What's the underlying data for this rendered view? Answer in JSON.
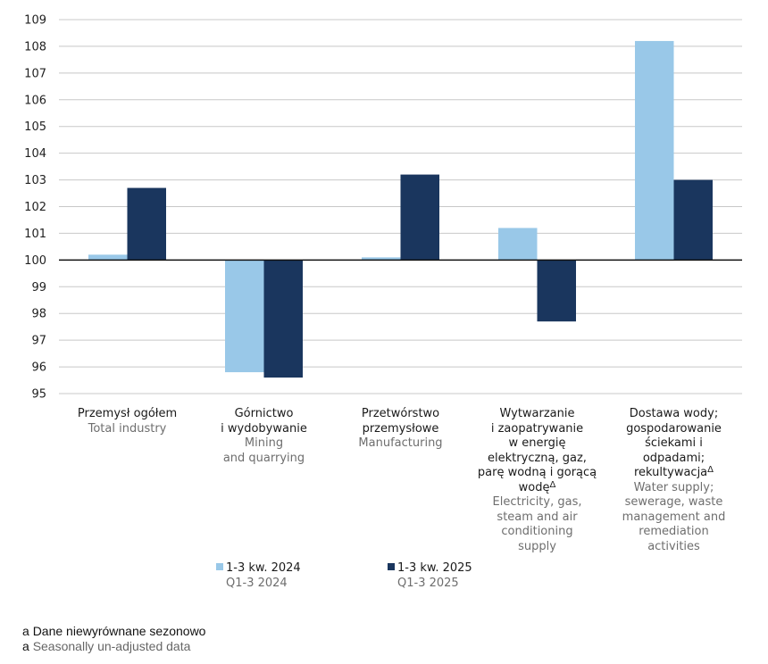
{
  "chart_data": {
    "type": "bar",
    "title": "",
    "xlabel": "",
    "ylabel": "",
    "ylim": [
      95,
      109
    ],
    "baseline": 100,
    "yticks": [
      109,
      108,
      107,
      106,
      105,
      104,
      103,
      102,
      101,
      100,
      99,
      98,
      97,
      96,
      95
    ],
    "grid": true,
    "legend_position": "bottom",
    "categories": [
      {
        "pl": "Przemysł ogółem",
        "en": "Total industry",
        "pl_lines": [
          "Przemysł ogółem"
        ],
        "en_lines": [
          "Total industry"
        ],
        "footnote_mark": ""
      },
      {
        "pl": "Górnictwo i wydobywanie",
        "en": "Mining and quarrying",
        "pl_lines": [
          "Górnictwo",
          "i wydobywanie"
        ],
        "en_lines": [
          "Mining",
          "and quarrying"
        ],
        "footnote_mark": ""
      },
      {
        "pl": "Przetwórstwo przemysłowe",
        "en": "Manufacturing",
        "pl_lines": [
          "Przetwórstwo",
          "przemysłowe"
        ],
        "en_lines": [
          "Manufacturing"
        ],
        "footnote_mark": ""
      },
      {
        "pl": "Wytwarzanie i zaopatrywanie w energię elektryczną, gaz, parę wodną i gorącą wodę",
        "en": "Electricity, gas, steam and air conditioning supply",
        "pl_lines": [
          "Wytwarzanie",
          "i zaopatrywanie",
          "w energię",
          "elektryczną, gaz,",
          "parę wodną i gorącą",
          "wodę"
        ],
        "en_lines": [
          "Electricity, gas,",
          "steam and air",
          "conditioning",
          "supply"
        ],
        "footnote_mark": "Δ"
      },
      {
        "pl": "Dostawa wody; gospodarowanie ściekami i odpadami; rekultywacja",
        "en": "Water supply; sewerage, waste management and remediation activities",
        "pl_lines": [
          "Dostawa wody;",
          "gospodarowanie",
          "ściekami i",
          "odpadami;",
          "rekultywacja"
        ],
        "en_lines": [
          "Water supply;",
          "sewerage, waste",
          "management and",
          "remediation",
          "activities"
        ],
        "footnote_mark": "Δ"
      }
    ],
    "series": [
      {
        "name": "1-3 kw. 2024",
        "name_en": "Q1-3 2024",
        "color": "#99c8e8",
        "values": [
          100.2,
          95.8,
          100.1,
          101.2,
          108.2
        ]
      },
      {
        "name": "1-3 kw. 2025",
        "name_en": "Q1-3 2025",
        "color": "#1a365e",
        "values": [
          102.7,
          95.6,
          103.2,
          97.7,
          103.0
        ]
      }
    ]
  },
  "footnote": {
    "marker": "a",
    "pl": "Dane niewyrównane sezonowo",
    "en": "Seasonally un-adjusted data"
  },
  "colors": {
    "grid": "#c8c8c8",
    "baseline": "#111111"
  }
}
